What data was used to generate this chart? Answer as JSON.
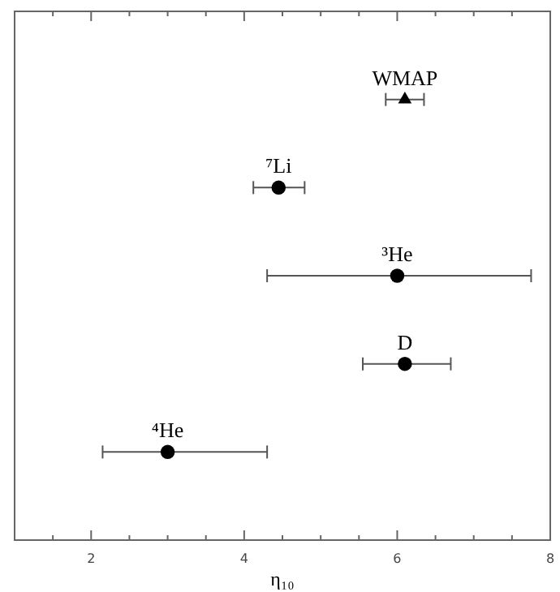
{
  "chart_data": {
    "type": "scatter",
    "orientation": "horizontal",
    "xlabel": "η₁₀",
    "categories": [
      "WMAP",
      "⁷Li",
      "³He",
      "D",
      "⁴He"
    ],
    "series": [
      {
        "color": "#000000",
        "marker": "triangle",
        "values": [
          6.1,
          null,
          null,
          null,
          null
        ],
        "errors": [
          0.25,
          null,
          null,
          null,
          null
        ]
      },
      {
        "color": "#000000",
        "marker": "circle",
        "values": [
          null,
          4.45,
          6.0,
          6.1,
          3.0
        ],
        "errors": [
          null,
          [
            4.12,
            4.79
          ],
          [
            4.3,
            7.75
          ],
          [
            5.55,
            6.7
          ],
          [
            2.15,
            4.3
          ]
        ]
      }
    ],
    "xlim": [
      1,
      8
    ],
    "xticks": [
      {
        "value": 1.5,
        "label": null
      },
      2,
      {
        "value": 2.5,
        "label": null
      },
      {
        "value": 3,
        "label": null
      },
      {
        "value": 3.5,
        "label": null
      },
      4,
      {
        "value": 4.5,
        "label": null
      },
      {
        "value": 5,
        "label": null
      },
      {
        "value": 5.5,
        "label": null
      },
      6,
      {
        "value": 6.5,
        "label": null
      },
      {
        "value": 7,
        "label": null
      },
      {
        "value": 7.5,
        "label": null
      },
      8
    ],
    "tick_labels": "x",
    "grid": false
  }
}
